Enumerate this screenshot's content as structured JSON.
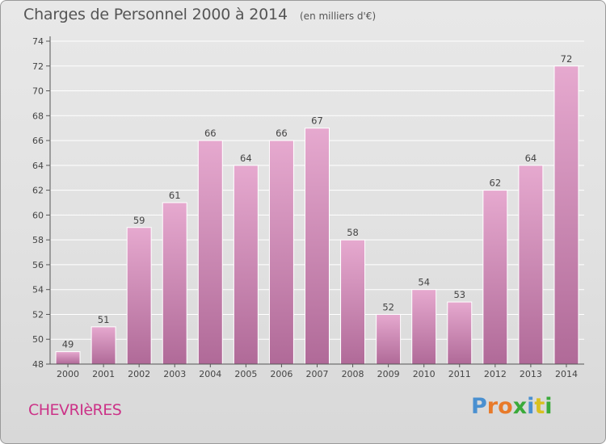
{
  "header": {
    "title": "Charges de Personnel 2000 à 2014",
    "subtitle": "(en milliers d'€)"
  },
  "footer": {
    "commune": "CHEVRIèRES",
    "logo_letters": [
      "P",
      "r",
      "o",
      "x",
      "i",
      "t",
      "i"
    ],
    "logo_colors": [
      "#4a90d0",
      "#e87a2a",
      "#e87a2a",
      "#3aaa3a",
      "#4a90d0",
      "#d8c020",
      "#3aaa3a"
    ]
  },
  "colors": {
    "bar_top": "#e6a9cf",
    "bar_bottom": "#b06a98",
    "grid": "#ffffff"
  },
  "chart_data": {
    "type": "bar",
    "title": "Charges de Personnel 2000 à 2014",
    "subtitle": "(en milliers d'€)",
    "categories": [
      "2000",
      "2001",
      "2002",
      "2003",
      "2004",
      "2005",
      "2006",
      "2007",
      "2008",
      "2009",
      "2010",
      "2011",
      "2012",
      "2013",
      "2014"
    ],
    "values": [
      49,
      51,
      59,
      61,
      66,
      64,
      66,
      67,
      58,
      52,
      54,
      53,
      62,
      64,
      72
    ],
    "xlabel": "",
    "ylabel": "",
    "ylim": [
      48,
      74
    ],
    "yticks": [
      48,
      50,
      52,
      54,
      56,
      58,
      60,
      62,
      64,
      66,
      68,
      70,
      72,
      74
    ],
    "grid": true,
    "legend": "none"
  }
}
